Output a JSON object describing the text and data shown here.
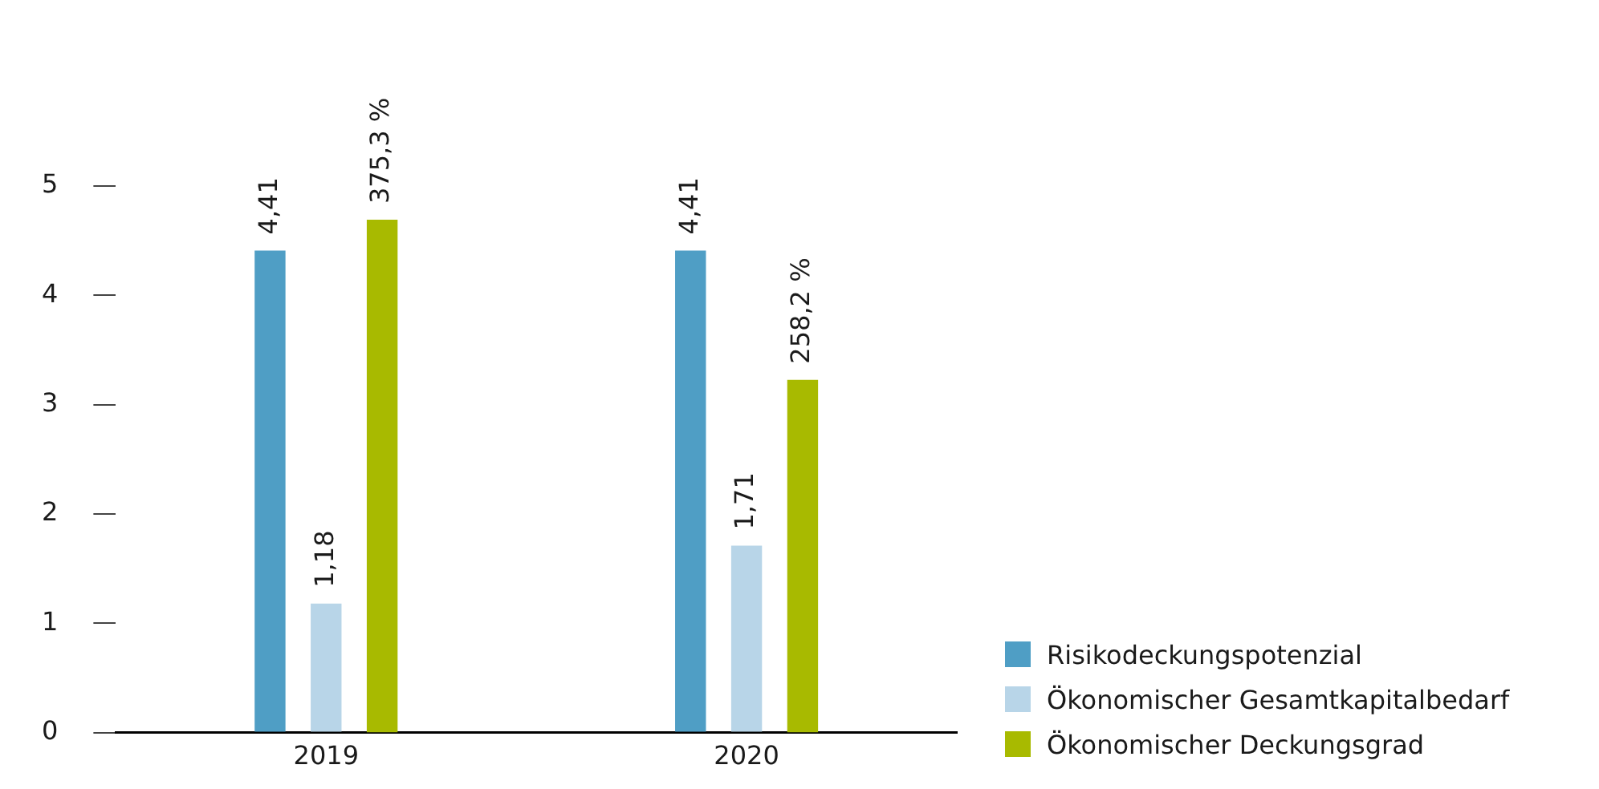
{
  "chart_data": {
    "type": "bar",
    "categories": [
      "2019",
      "2020"
    ],
    "series": [
      {
        "name": "Risikodeckungspotenzial",
        "color": "#4f9ec5",
        "values": [
          4.41,
          4.41
        ],
        "value_labels": [
          "4,41",
          "4,41"
        ]
      },
      {
        "name": "Ökonomischer Gesamtkapitalbedarf",
        "color": "#b8d5e8",
        "values": [
          1.18,
          1.71
        ],
        "value_labels": [
          "1,18",
          "1,71"
        ]
      },
      {
        "name": "Ökonomischer Deckungsgrad",
        "color": "#a8ba00",
        "values": [
          375.3,
          258.2
        ],
        "value_labels": [
          "375,3 %",
          "258,2 %"
        ],
        "axis": "y2"
      }
    ],
    "ylim": [
      0,
      5
    ],
    "yticks": [
      0,
      1,
      2,
      3,
      4,
      5
    ],
    "grid": false,
    "legend": "bottom right"
  }
}
